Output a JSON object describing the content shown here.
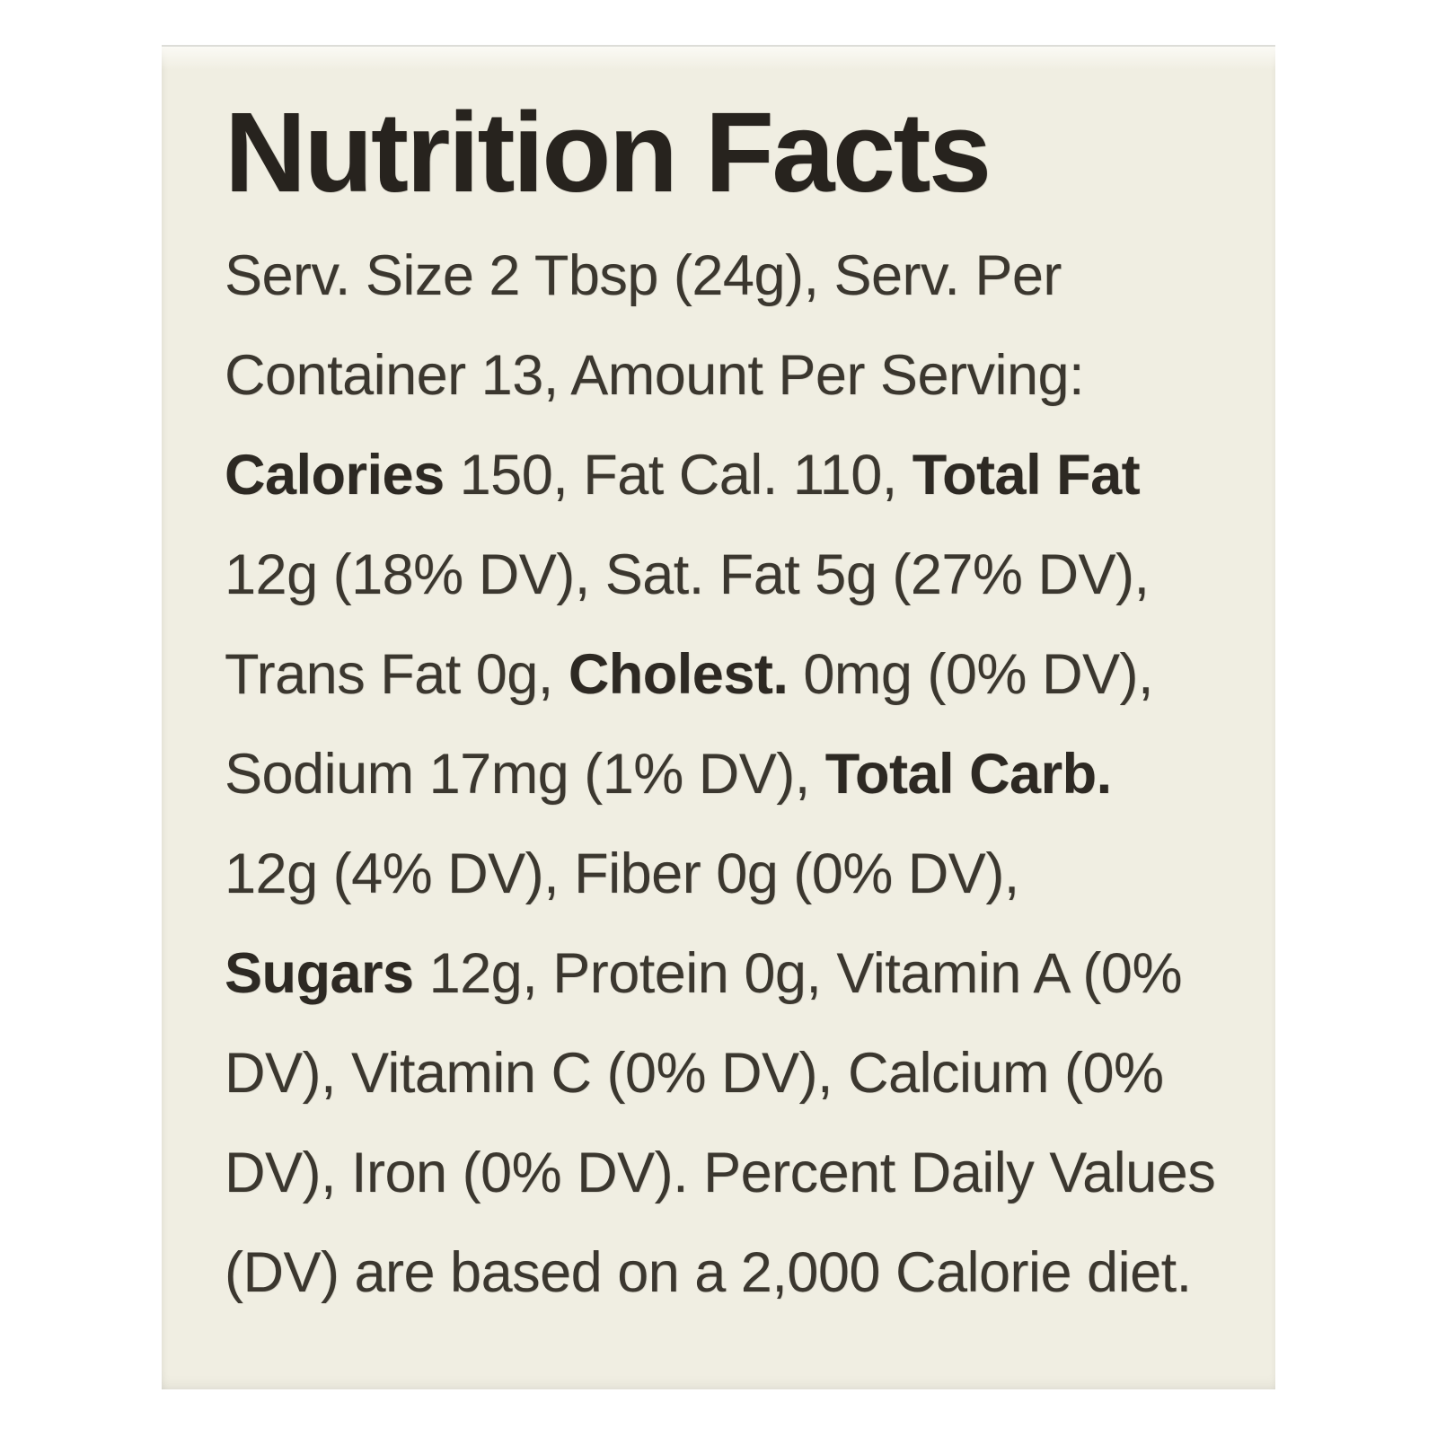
{
  "colors": {
    "page_bg": "#ffffff",
    "label_bg": "#f0eee2",
    "body_text": "#3b372f",
    "title_text": "#27231e"
  },
  "label": {
    "title": "Nutrition Facts",
    "serving_size": "2 Tbsp (24g)",
    "servings_per_container": "13",
    "nutrition": {
      "calories": "150",
      "fat_calories": "110",
      "total_fat": "12g (18% DV)",
      "saturated_fat": "5g (27% DV)",
      "trans_fat": "0g",
      "cholesterol": "0mg (0% DV)",
      "sodium": "17mg (1% DV)",
      "total_carb": "12g (4% DV)",
      "fiber": "0g (0% DV)",
      "sugars": "12g",
      "protein": "0g",
      "vitamin_a": "0% DV",
      "vitamin_c": "0% DV",
      "calcium": "0% DV",
      "iron": "0% DV"
    },
    "footnote": "Percent Daily Values (DV) are based on a 2,000 Calorie diet.",
    "lines": [
      [
        {
          "t": "Serv. Size 2 Tbsp (24g), Serv. Per",
          "b": false
        }
      ],
      [
        {
          "t": "Container 13, Amount Per Serving:",
          "b": false
        }
      ],
      [
        {
          "t": "Calories",
          "b": true
        },
        {
          "t": " 150, Fat Cal. 110, ",
          "b": false
        },
        {
          "t": "Total Fat",
          "b": true
        }
      ],
      [
        {
          "t": "12g (18% DV), Sat. Fat 5g (27% DV),",
          "b": false
        }
      ],
      [
        {
          "t": "Trans Fat 0g, ",
          "b": false
        },
        {
          "t": "Cholest.",
          "b": true
        },
        {
          "t": " 0mg (0% DV),",
          "b": false
        }
      ],
      [
        {
          "t": "Sodium 17mg (1% DV), ",
          "b": false
        },
        {
          "t": "Total Carb.",
          "b": true
        }
      ],
      [
        {
          "t": "12g (4% DV), Fiber 0g (0% DV),",
          "b": false
        }
      ],
      [
        {
          "t": "Sugars",
          "b": true
        },
        {
          "t": " 12g, Protein 0g, Vitamin A (0%",
          "b": false
        }
      ],
      [
        {
          "t": "DV), Vitamin C (0% DV), Calcium (0%",
          "b": false
        }
      ],
      [
        {
          "t": "DV), Iron (0% DV). Percent Daily Values",
          "b": false
        }
      ],
      [
        {
          "t": "(DV) are based on a 2,000 Calorie diet.",
          "b": false
        }
      ]
    ]
  }
}
